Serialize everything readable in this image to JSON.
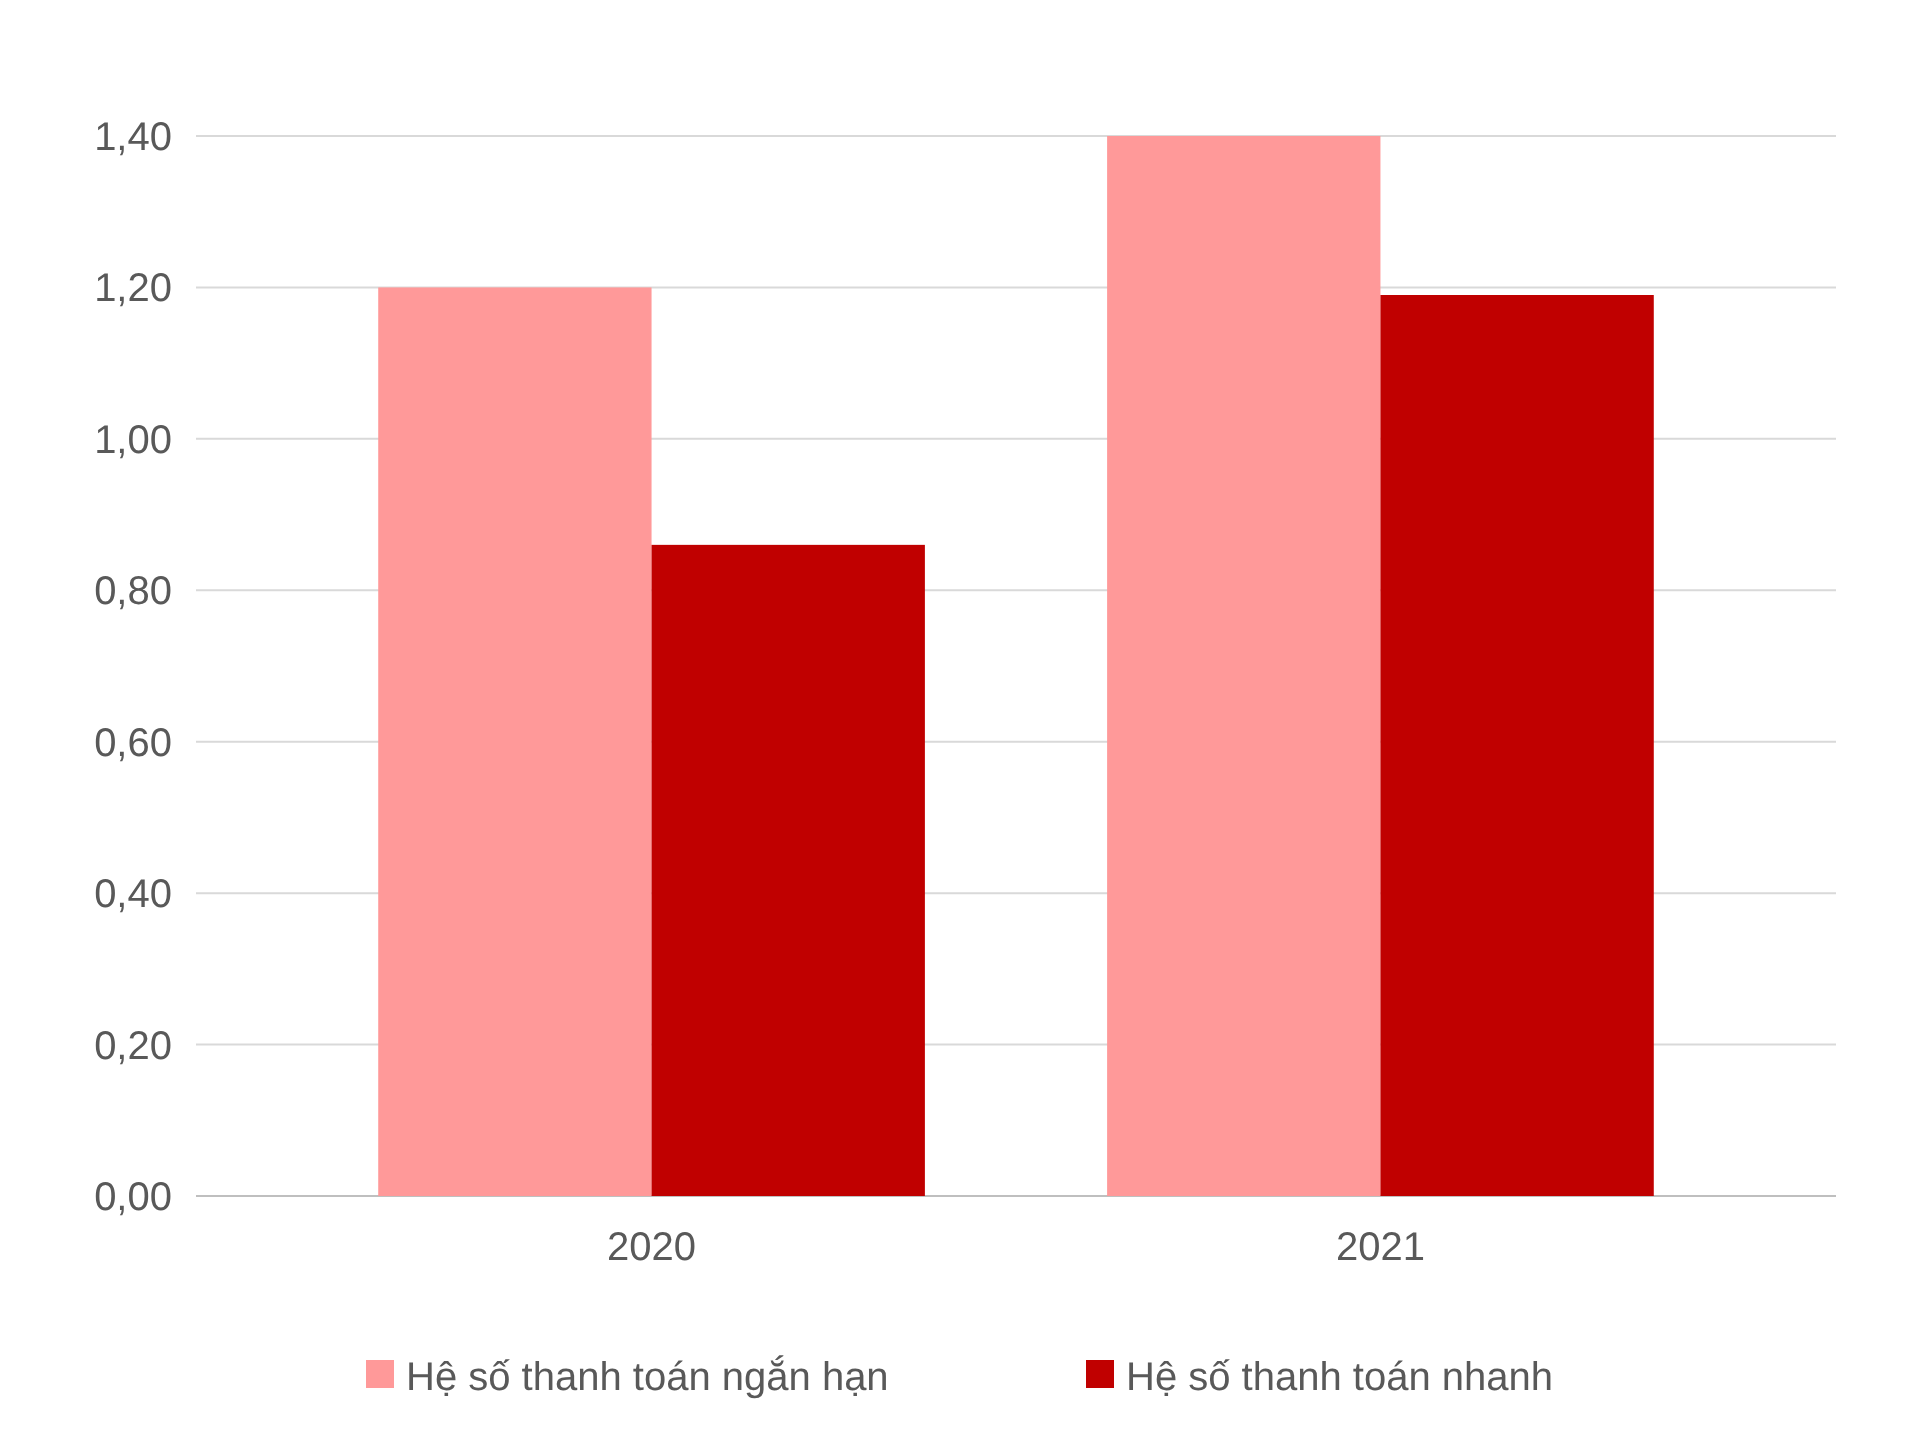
{
  "chart_data": {
    "type": "bar",
    "categories": [
      "2020",
      "2021"
    ],
    "series": [
      {
        "name": "Hệ số thanh toán ngắn hạn",
        "color": "#ff9999",
        "values": [
          1.2,
          1.4
        ]
      },
      {
        "name": "Hệ số thanh toán nhanh",
        "color": "#c00000",
        "values": [
          0.86,
          1.19
        ]
      }
    ],
    "ylim": [
      0,
      1.4
    ],
    "yticks": [
      {
        "value": 0,
        "label": "0,00"
      },
      {
        "value": 0.2,
        "label": "0,20"
      },
      {
        "value": 0.4,
        "label": "0,40"
      },
      {
        "value": 0.6,
        "label": "0,60"
      },
      {
        "value": 0.8,
        "label": "0,80"
      },
      {
        "value": 1,
        "label": "1,00"
      },
      {
        "value": 1.2,
        "label": "1,20"
      },
      {
        "value": 1.4,
        "label": "1,40"
      }
    ],
    "grid": "y",
    "legend": "bottom"
  }
}
